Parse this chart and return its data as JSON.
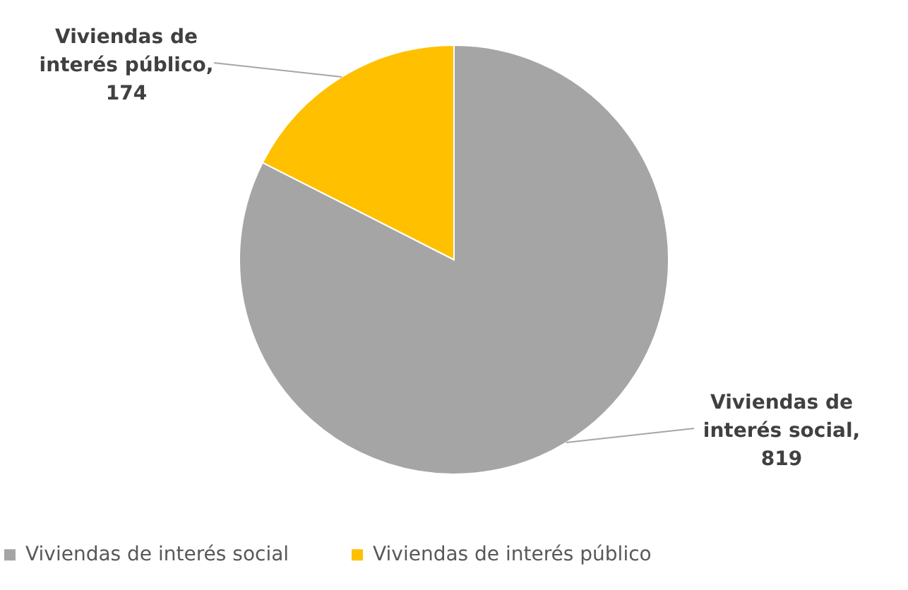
{
  "chart_data": {
    "type": "pie",
    "categories": [
      "Viviendas de interés social",
      "Viviendas de interés público"
    ],
    "values": [
      819,
      174
    ],
    "colors": [
      "#a5a5a5",
      "#ffc000"
    ],
    "value_labels": [
      "Viviendas de interés social, 819",
      "Viviendas de interés público, 174"
    ],
    "legend": "bottom"
  }
}
